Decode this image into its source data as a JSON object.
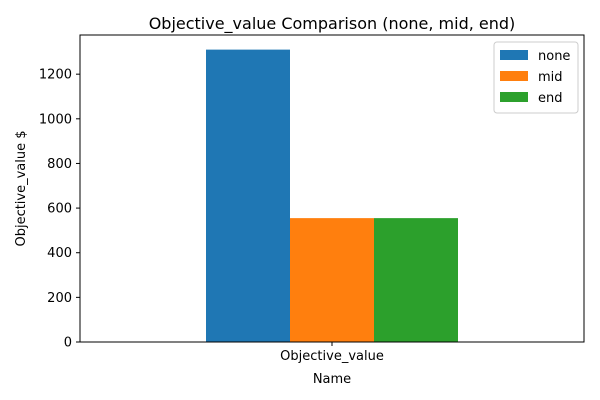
{
  "chart_data": {
    "type": "bar",
    "title": "Objective_value Comparison (none, mid, end)",
    "xlabel": "Name",
    "ylabel": "Objective_value $",
    "categories": [
      "Objective_value"
    ],
    "series": [
      {
        "name": "none",
        "values": [
          1310
        ],
        "color": "#1f77b4"
      },
      {
        "name": "mid",
        "values": [
          555
        ],
        "color": "#ff7f0e"
      },
      {
        "name": "end",
        "values": [
          555
        ],
        "color": "#2ca02c"
      }
    ],
    "yticks": [
      0,
      200,
      400,
      600,
      800,
      1000,
      1200
    ],
    "ylim": [
      0,
      1375.5
    ],
    "grid": false,
    "legend_position": "top-right"
  }
}
